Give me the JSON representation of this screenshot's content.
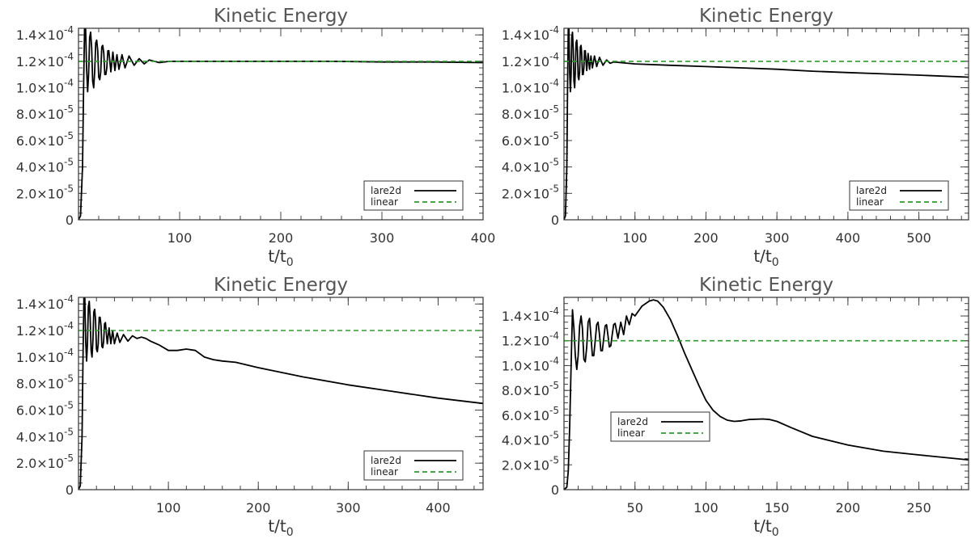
{
  "chart_data": [
    {
      "type": "line",
      "title": "Kinetic Energy",
      "xlabel": "t/t",
      "xlabel_sub": "0",
      "ylabel": "",
      "xlim": [
        0,
        400
      ],
      "ylim": [
        0,
        0.000145
      ],
      "x_ticks": [
        {
          "value": 100,
          "label": "100"
        },
        {
          "value": 200,
          "label": "200"
        },
        {
          "value": 300,
          "label": "300"
        },
        {
          "value": 400,
          "label": "400"
        }
      ],
      "y_ticks": [
        {
          "value": 0,
          "mant": "0",
          "exp": ""
        },
        {
          "value": 2e-05,
          "mant": "2.0×10",
          "exp": "-5"
        },
        {
          "value": 4e-05,
          "mant": "4.0×10",
          "exp": "-5"
        },
        {
          "value": 6e-05,
          "mant": "6.0×10",
          "exp": "-5"
        },
        {
          "value": 8e-05,
          "mant": "8.0×10",
          "exp": "-5"
        },
        {
          "value": 0.0001,
          "mant": "1.0×10",
          "exp": "-4"
        },
        {
          "value": 0.00012,
          "mant": "1.2×10",
          "exp": "-4"
        },
        {
          "value": 0.00014,
          "mant": "1.4×10",
          "exp": "-4"
        }
      ],
      "legend": {
        "position": "bottom-right",
        "entries": [
          "lare2d",
          "linear"
        ]
      },
      "series": [
        {
          "name": "lare2d",
          "color": "#000000",
          "style": "solid",
          "x": [
            0,
            2,
            4,
            5,
            6,
            7,
            8,
            9,
            10,
            11,
            12,
            13,
            14,
            15,
            16,
            17,
            18,
            19,
            20,
            21,
            22,
            23,
            24,
            25,
            26,
            27,
            28,
            29,
            30,
            32,
            34,
            36,
            38,
            40,
            43,
            46,
            50,
            55,
            60,
            65,
            70,
            80,
            90,
            100,
            150,
            200,
            250,
            300,
            350,
            400
          ],
          "y": [
            0,
            3e-06,
            4e-05,
            0.0001,
            0.000145,
            0.000145,
            0.000115,
            9.7e-05,
            0.00011,
            0.000138,
            0.000142,
            0.00013,
            0.000105,
            0.0001,
            0.000112,
            0.000134,
            0.000136,
            0.000128,
            0.000108,
            0.000106,
            0.000112,
            0.000131,
            0.000132,
            0.000126,
            0.00011,
            0.00011,
            0.000115,
            0.000128,
            0.000128,
            0.000112,
            0.000127,
            0.000113,
            0.000125,
            0.000114,
            0.000125,
            0.000115,
            0.000124,
            0.000117,
            0.000122,
            0.000118,
            0.000121,
            0.000119,
            0.00012,
            0.00012,
            0.00012,
            0.00012,
            0.00012,
            0.0001195,
            0.0001195,
            0.000119
          ]
        },
        {
          "name": "linear",
          "color": "#2e9a2e",
          "style": "dashed",
          "x": [
            0,
            400
          ],
          "y": [
            0.00012,
            0.00012
          ]
        }
      ]
    },
    {
      "type": "line",
      "title": "Kinetic Energy",
      "xlabel": "t/t",
      "xlabel_sub": "0",
      "ylabel": "",
      "xlim": [
        0,
        570
      ],
      "ylim": [
        0,
        0.000145
      ],
      "x_ticks": [
        {
          "value": 100,
          "label": "100"
        },
        {
          "value": 200,
          "label": "200"
        },
        {
          "value": 300,
          "label": "300"
        },
        {
          "value": 400,
          "label": "400"
        },
        {
          "value": 500,
          "label": "500"
        }
      ],
      "y_ticks": [
        {
          "value": 0,
          "mant": "0",
          "exp": ""
        },
        {
          "value": 2e-05,
          "mant": "2.0×10",
          "exp": "-5"
        },
        {
          "value": 4e-05,
          "mant": "4.0×10",
          "exp": "-5"
        },
        {
          "value": 6e-05,
          "mant": "6.0×10",
          "exp": "-5"
        },
        {
          "value": 8e-05,
          "mant": "8.0×10",
          "exp": "-5"
        },
        {
          "value": 0.0001,
          "mant": "1.0×10",
          "exp": "-4"
        },
        {
          "value": 0.00012,
          "mant": "1.2×10",
          "exp": "-4"
        },
        {
          "value": 0.00014,
          "mant": "1.4×10",
          "exp": "-4"
        }
      ],
      "legend": {
        "position": "bottom-right",
        "entries": [
          "lare2d",
          "linear"
        ]
      },
      "series": [
        {
          "name": "lare2d",
          "color": "#000000",
          "style": "solid",
          "x": [
            0,
            2,
            4,
            5,
            6,
            7,
            8,
            9,
            10,
            11,
            12,
            13,
            14,
            15,
            16,
            17,
            18,
            19,
            20,
            21,
            22,
            23,
            24,
            25,
            26,
            27,
            28,
            29,
            30,
            32,
            34,
            36,
            38,
            40,
            43,
            46,
            50,
            55,
            60,
            65,
            70,
            80,
            100,
            150,
            200,
            250,
            300,
            350,
            400,
            450,
            500,
            570
          ],
          "y": [
            0,
            3e-06,
            4e-05,
            0.0001,
            0.000145,
            0.000145,
            0.000112,
            9.7e-05,
            0.00011,
            0.000138,
            0.000142,
            0.00013,
            0.000105,
            0.0001,
            0.000112,
            0.000134,
            0.000136,
            0.000128,
            0.000108,
            0.000106,
            0.000112,
            0.000131,
            0.000132,
            0.000126,
            0.00011,
            0.00011,
            0.000115,
            0.000128,
            0.000128,
            0.000113,
            0.000126,
            0.000114,
            0.000124,
            0.000115,
            0.000124,
            0.000116,
            0.000123,
            0.000117,
            0.000121,
            0.0001185,
            0.0001195,
            0.000119,
            0.000118,
            0.000117,
            0.000116,
            0.000115,
            0.000114,
            0.0001125,
            0.0001115,
            0.0001105,
            0.0001095,
            0.000108
          ]
        },
        {
          "name": "linear",
          "color": "#2e9a2e",
          "style": "dashed",
          "x": [
            0,
            570
          ],
          "y": [
            0.00012,
            0.00012
          ]
        }
      ]
    },
    {
      "type": "line",
      "title": "Kinetic Energy",
      "xlabel": "t/t",
      "xlabel_sub": "0",
      "ylabel": "",
      "xlim": [
        0,
        450
      ],
      "ylim": [
        0,
        0.000145
      ],
      "x_ticks": [
        {
          "value": 100,
          "label": "100"
        },
        {
          "value": 200,
          "label": "200"
        },
        {
          "value": 300,
          "label": "300"
        },
        {
          "value": 400,
          "label": "400"
        }
      ],
      "y_ticks": [
        {
          "value": 0,
          "mant": "0",
          "exp": ""
        },
        {
          "value": 2e-05,
          "mant": "2.0×10",
          "exp": "-5"
        },
        {
          "value": 4e-05,
          "mant": "4.0×10",
          "exp": "-5"
        },
        {
          "value": 6e-05,
          "mant": "6.0×10",
          "exp": "-5"
        },
        {
          "value": 8e-05,
          "mant": "8.0×10",
          "exp": "-5"
        },
        {
          "value": 0.0001,
          "mant": "1.0×10",
          "exp": "-4"
        },
        {
          "value": 0.00012,
          "mant": "1.2×10",
          "exp": "-4"
        },
        {
          "value": 0.00014,
          "mant": "1.4×10",
          "exp": "-4"
        }
      ],
      "legend": {
        "position": "bottom-right",
        "entries": [
          "lare2d",
          "linear"
        ]
      },
      "series": [
        {
          "name": "lare2d",
          "color": "#000000",
          "style": "solid",
          "x": [
            0,
            2,
            4,
            5,
            6,
            7,
            8,
            9,
            10,
            11,
            12,
            13,
            14,
            15,
            16,
            17,
            18,
            19,
            20,
            21,
            22,
            23,
            24,
            25,
            26,
            27,
            28,
            29,
            30,
            32,
            34,
            36,
            38,
            40,
            43,
            46,
            50,
            55,
            60,
            65,
            70,
            75,
            80,
            90,
            100,
            110,
            120,
            130,
            140,
            150,
            160,
            175,
            200,
            250,
            300,
            350,
            400,
            450
          ],
          "y": [
            0,
            3e-06,
            4e-05,
            0.0001,
            0.000145,
            0.000145,
            0.000112,
            9.7e-05,
            0.00011,
            0.000138,
            0.000142,
            0.00013,
            0.000105,
            0.0001,
            0.000112,
            0.000134,
            0.000136,
            0.000128,
            0.000106,
            0.000104,
            0.00011,
            0.00013,
            0.00013,
            0.000124,
            0.000108,
            0.000107,
            0.000112,
            0.000125,
            0.000126,
            0.00011,
            0.000122,
            0.00011,
            0.00012,
            0.00011,
            0.000118,
            0.000111,
            0.000117,
            0.000112,
            0.000116,
            0.000114,
            0.000115,
            0.000114,
            0.000112,
            0.000109,
            0.000105,
            0.000105,
            0.000106,
            0.000105,
            0.0001,
            9.8e-05,
            9.7e-05,
            9.6e-05,
            9.2e-05,
            8.5e-05,
            7.9e-05,
            7.4e-05,
            6.9e-05,
            6.5e-05
          ]
        },
        {
          "name": "linear",
          "color": "#2e9a2e",
          "style": "dashed",
          "x": [
            0,
            450
          ],
          "y": [
            0.00012,
            0.00012
          ]
        }
      ]
    },
    {
      "type": "line",
      "title": "Kinetic Energy",
      "xlabel": "t/t",
      "xlabel_sub": "0",
      "ylabel": "",
      "xlim": [
        0,
        285
      ],
      "ylim": [
        0,
        0.000155
      ],
      "x_ticks": [
        {
          "value": 50,
          "label": "50"
        },
        {
          "value": 100,
          "label": "100"
        },
        {
          "value": 150,
          "label": "150"
        },
        {
          "value": 200,
          "label": "200"
        },
        {
          "value": 250,
          "label": "250"
        }
      ],
      "y_ticks": [
        {
          "value": 0,
          "mant": "0",
          "exp": ""
        },
        {
          "value": 2e-05,
          "mant": "2.0×10",
          "exp": "-5"
        },
        {
          "value": 4e-05,
          "mant": "4.0×10",
          "exp": "-5"
        },
        {
          "value": 6e-05,
          "mant": "6.0×10",
          "exp": "-5"
        },
        {
          "value": 8e-05,
          "mant": "8.0×10",
          "exp": "-5"
        },
        {
          "value": 0.0001,
          "mant": "1.0×10",
          "exp": "-4"
        },
        {
          "value": 0.00012,
          "mant": "1.2×10",
          "exp": "-4"
        },
        {
          "value": 0.00014,
          "mant": "1.4×10",
          "exp": "-4"
        }
      ],
      "legend": {
        "position": "center-left",
        "entries": [
          "lare2d",
          "linear"
        ]
      },
      "series": [
        {
          "name": "lare2d",
          "color": "#000000",
          "style": "solid",
          "x": [
            0,
            2,
            3,
            4,
            5,
            6,
            7,
            8,
            9,
            10,
            11,
            12,
            13,
            14,
            15,
            16,
            17,
            18,
            19,
            20,
            21,
            22,
            23,
            24,
            25,
            26,
            27,
            28,
            29,
            30,
            31,
            32,
            33,
            34,
            35,
            36,
            38,
            40,
            42,
            44,
            46,
            48,
            50,
            55,
            60,
            63,
            66,
            70,
            75,
            80,
            85,
            90,
            95,
            100,
            105,
            110,
            115,
            120,
            125,
            130,
            140,
            145,
            150,
            160,
            175,
            200,
            225,
            250,
            285
          ],
          "y": [
            0,
            2e-06,
            1.5e-05,
            5e-05,
            0.0001,
            0.000145,
            0.00013,
            0.000108,
            9.7e-05,
            0.000108,
            0.000132,
            0.00014,
            0.00013,
            0.000105,
            0.000103,
            0.000115,
            0.000135,
            0.000138,
            0.000124,
            0.000108,
            0.000108,
            0.00012,
            0.000133,
            0.000135,
            0.000125,
            0.000112,
            0.000112,
            0.000122,
            0.000132,
            0.000133,
            0.000124,
            0.000115,
            0.000116,
            0.000125,
            0.000133,
            0.000134,
            0.000122,
            0.000135,
            0.000125,
            0.00014,
            0.000133,
            0.000142,
            0.00014,
            0.000148,
            0.000152,
            0.000153,
            0.000152,
            0.000147,
            0.000137,
            0.000124,
            0.00011,
            9.7e-05,
            8.4e-05,
            7.2e-05,
            6.4e-05,
            5.9e-05,
            5.6e-05,
            5.5e-05,
            5.55e-05,
            5.65e-05,
            5.7e-05,
            5.65e-05,
            5.5e-05,
            5e-05,
            4.3e-05,
            3.6e-05,
            3.1e-05,
            2.8e-05,
            2.4e-05
          ]
        },
        {
          "name": "linear",
          "color": "#2e9a2e",
          "style": "dashed",
          "x": [
            0,
            285
          ],
          "y": [
            0.00012,
            0.00012
          ]
        }
      ]
    }
  ]
}
